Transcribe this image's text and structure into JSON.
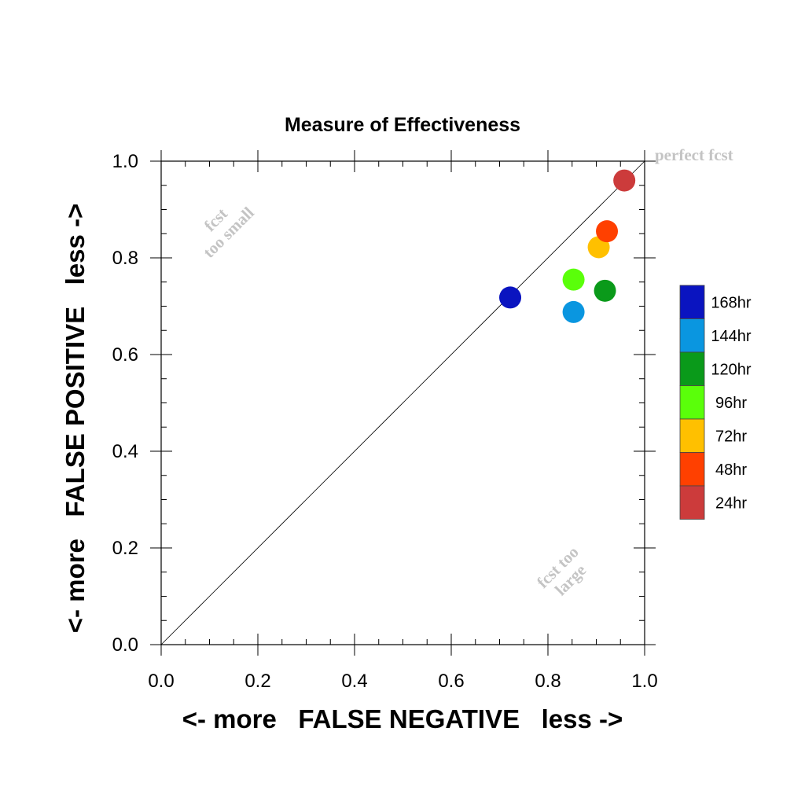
{
  "chart_data": {
    "type": "scatter",
    "title": "Measure of Effectiveness",
    "xlabel": "<- more   FALSE NEGATIVE   less ->",
    "ylabel": "<- more   FALSE POSITIVE   less ->",
    "xlim": [
      0.0,
      1.0
    ],
    "ylim": [
      0.0,
      1.0
    ],
    "x_ticks": [
      "0.0",
      "0.2",
      "0.4",
      "0.6",
      "0.8",
      "1.0"
    ],
    "y_ticks": [
      "0.0",
      "0.2",
      "0.4",
      "0.6",
      "0.8",
      "1.0"
    ],
    "diagonal_line": true,
    "grid": false,
    "legend_position": "right",
    "annotations": {
      "perfect": "perfect fcst",
      "too_small_1": "fcst",
      "too_small_2": "too small",
      "too_large_1": "fcst too",
      "too_large_2": "large"
    },
    "series": [
      {
        "name": "168hr",
        "color": "#0a14c0",
        "x": 0.722,
        "y": 0.718
      },
      {
        "name": "144hr",
        "color": "#0a96e0",
        "x": 0.853,
        "y": 0.688
      },
      {
        "name": "120hr",
        "color": "#0a9a1a",
        "x": 0.918,
        "y": 0.732
      },
      {
        "name": "96hr",
        "color": "#5aff0a",
        "x": 0.853,
        "y": 0.755
      },
      {
        "name": "72hr",
        "color": "#ffc000",
        "x": 0.905,
        "y": 0.822
      },
      {
        "name": "48hr",
        "color": "#ff4000",
        "x": 0.922,
        "y": 0.855
      },
      {
        "name": "24hr",
        "color": "#cc3b3b",
        "x": 0.958,
        "y": 0.96
      }
    ]
  }
}
